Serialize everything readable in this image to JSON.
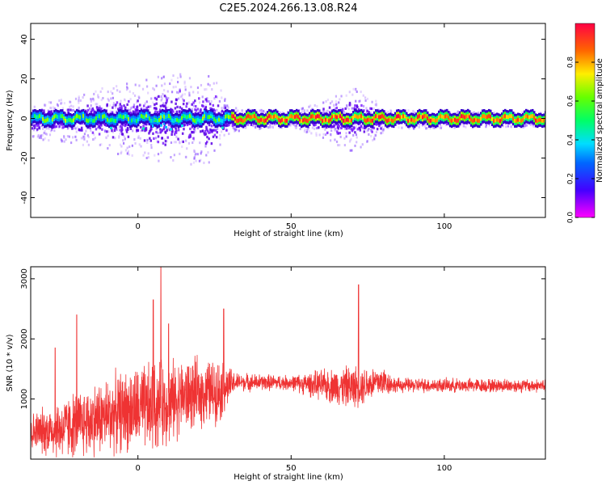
{
  "title": "C2E5.2024.266.13.08.R24",
  "chart_data": [
    {
      "type": "heatmap",
      "xlabel": "Height of straight line (km)",
      "ylabel": "Frequency (Hz)",
      "xlim": [
        -35,
        133
      ],
      "ylim": [
        -50,
        48
      ],
      "xticks": [
        0,
        50,
        100
      ],
      "yticks": [
        -40,
        -20,
        0,
        20,
        40
      ],
      "grid": false,
      "colormap": "rainbow",
      "colorbar": {
        "label": "Normalized spectral amplitude",
        "ticks": [
          0.0,
          0.2,
          0.4,
          0.6,
          0.8
        ],
        "range": [
          0,
          1
        ]
      },
      "spread_profile_hz": [
        {
          "x": -35,
          "spread": 8
        },
        {
          "x": -20,
          "spread": 10
        },
        {
          "x": -10,
          "spread": 14
        },
        {
          "x": 0,
          "spread": 16
        },
        {
          "x": 10,
          "spread": 20
        },
        {
          "x": 25,
          "spread": 18
        },
        {
          "x": 30,
          "spread": 5
        },
        {
          "x": 50,
          "spread": 3
        },
        {
          "x": 60,
          "spread": 8
        },
        {
          "x": 70,
          "spread": 14
        },
        {
          "x": 82,
          "spread": 4
        },
        {
          "x": 133,
          "spread": 3
        }
      ]
    },
    {
      "type": "line",
      "color": "#ef3333",
      "xlabel": "Height of straight line (km)",
      "ylabel": "SNR (10 * v/v)",
      "xlim": [
        -35,
        133
      ],
      "ylim": [
        0,
        3200
      ],
      "xticks": [
        0,
        50,
        100
      ],
      "yticks": [
        1000,
        2000,
        3000
      ],
      "grid": false,
      "envelope": [
        {
          "x": -35,
          "mean": 450,
          "noise": 300
        },
        {
          "x": -25,
          "mean": 500,
          "noise": 500
        },
        {
          "x": -15,
          "mean": 650,
          "noise": 600
        },
        {
          "x": -5,
          "mean": 800,
          "noise": 650
        },
        {
          "x": 5,
          "mean": 850,
          "noise": 750
        },
        {
          "x": 15,
          "mean": 1050,
          "noise": 600
        },
        {
          "x": 27,
          "mean": 1150,
          "noise": 500
        },
        {
          "x": 32,
          "mean": 1280,
          "noise": 150
        },
        {
          "x": 50,
          "mean": 1270,
          "noise": 120
        },
        {
          "x": 60,
          "mean": 1230,
          "noise": 250
        },
        {
          "x": 70,
          "mean": 1200,
          "noise": 350
        },
        {
          "x": 80,
          "mean": 1300,
          "noise": 250
        },
        {
          "x": 84,
          "mean": 1230,
          "noise": 120
        },
        {
          "x": 133,
          "mean": 1220,
          "noise": 110
        }
      ],
      "spikes": [
        {
          "x": 7.5,
          "y": 3200
        },
        {
          "x": 5,
          "y": 2650
        },
        {
          "x": 72,
          "y": 2900
        },
        {
          "x": -20,
          "y": 2400
        },
        {
          "x": -27,
          "y": 1850
        },
        {
          "x": 28,
          "y": 2500
        },
        {
          "x": 10,
          "y": 2250
        }
      ]
    }
  ]
}
